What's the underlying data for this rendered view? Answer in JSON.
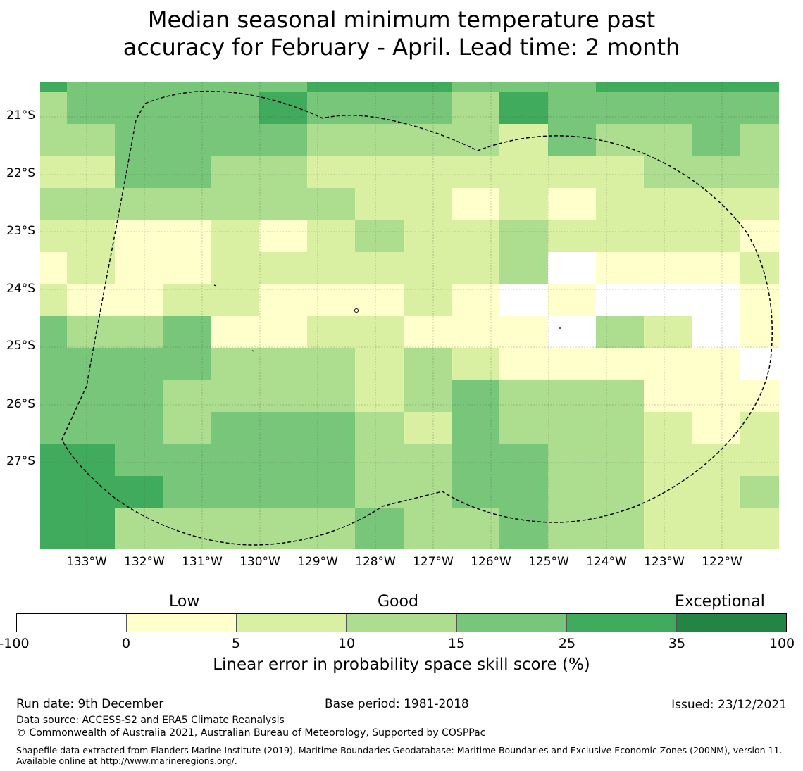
{
  "title": {
    "line1": "Median seasonal minimum temperature past",
    "line2": "accuracy for February - April. Lead time: 2 month"
  },
  "map": {
    "lat_labels": [
      "21°S",
      "22°S",
      "23°S",
      "24°S",
      "25°S",
      "26°S",
      "27°S"
    ],
    "lon_labels": [
      "133°W",
      "132°W",
      "131°W",
      "130°W",
      "129°W",
      "128°W",
      "127°W",
      "126°W",
      "125°W",
      "124°W",
      "123°W",
      "122°W"
    ],
    "category_colors": [
      "#ffffff",
      "#ffffcc",
      "#d9f0a3",
      "#addd8e",
      "#78c679",
      "#41ab5d",
      "#238443"
    ],
    "boundary_style": "dashed black EEZ outline",
    "grid": true,
    "skill_grid": [
      [
        5,
        4,
        4,
        4,
        4,
        4,
        5,
        5,
        5,
        4,
        4,
        4,
        5,
        5,
        5,
        5
      ],
      [
        3,
        4,
        4,
        4,
        4,
        5,
        4,
        4,
        4,
        3,
        5,
        4,
        4,
        4,
        4,
        4
      ],
      [
        3,
        3,
        4,
        4,
        4,
        4,
        3,
        3,
        3,
        3,
        2,
        4,
        3,
        3,
        4,
        3
      ],
      [
        2,
        2,
        4,
        4,
        3,
        3,
        2,
        2,
        2,
        2,
        2,
        2,
        2,
        3,
        3,
        3
      ],
      [
        3,
        3,
        3,
        3,
        3,
        3,
        3,
        2,
        2,
        1,
        2,
        1,
        2,
        2,
        2,
        2
      ],
      [
        2,
        2,
        1,
        1,
        2,
        1,
        2,
        3,
        2,
        2,
        3,
        2,
        2,
        2,
        2,
        1
      ],
      [
        1,
        2,
        1,
        1,
        2,
        2,
        2,
        2,
        2,
        2,
        3,
        0,
        1,
        1,
        1,
        2
      ],
      [
        2,
        1,
        1,
        2,
        2,
        1,
        1,
        1,
        2,
        1,
        0,
        1,
        0,
        0,
        0,
        1
      ],
      [
        4,
        3,
        3,
        4,
        1,
        1,
        2,
        2,
        1,
        1,
        1,
        0,
        3,
        2,
        0,
        1
      ],
      [
        4,
        4,
        4,
        4,
        3,
        3,
        3,
        2,
        3,
        2,
        1,
        1,
        1,
        1,
        1,
        0
      ],
      [
        4,
        4,
        4,
        3,
        3,
        3,
        3,
        2,
        3,
        4,
        3,
        3,
        3,
        1,
        1,
        1
      ],
      [
        4,
        4,
        4,
        3,
        4,
        4,
        4,
        3,
        2,
        4,
        3,
        3,
        3,
        2,
        1,
        2
      ],
      [
        5,
        5,
        4,
        4,
        4,
        4,
        4,
        3,
        3,
        4,
        4,
        3,
        3,
        2,
        2,
        2
      ],
      [
        5,
        5,
        5,
        4,
        4,
        4,
        4,
        3,
        3,
        4,
        4,
        3,
        3,
        2,
        2,
        3
      ],
      [
        5,
        5,
        3,
        3,
        3,
        3,
        3,
        4,
        3,
        3,
        4,
        3,
        3,
        2,
        2,
        2
      ]
    ]
  },
  "colorbar": {
    "categories": [
      "Low",
      "Good",
      "Exceptional"
    ],
    "ticks": [
      "-100",
      "0",
      "5",
      "10",
      "15",
      "25",
      "35",
      "100"
    ],
    "colors": [
      "#ffffff",
      "#ffffcc",
      "#d9f0a3",
      "#addd8e",
      "#78c679",
      "#41ab5d",
      "#238443"
    ],
    "title": "Linear error in probability space skill score (%)"
  },
  "footer": {
    "run_date": "Run date: 9th December",
    "base_period": "Base period: 1981-2018",
    "issued": "Issued: 23/12/2021",
    "data_source": "Data source: ACCESS-S2 and ERA5 Climate Reanalysis",
    "copyright": "© Commonwealth of Australia 2021, Australian Bureau of Meteorology, Supported by COSPPac",
    "shapefile": "Shapefile data extracted from Flanders Marine Institute (2019), Maritime Boundaries Geodatabase: Maritime Boundaries and Exclusive Economic Zones (200NM), version 11. Available online at http://www.marineregions.org/."
  }
}
